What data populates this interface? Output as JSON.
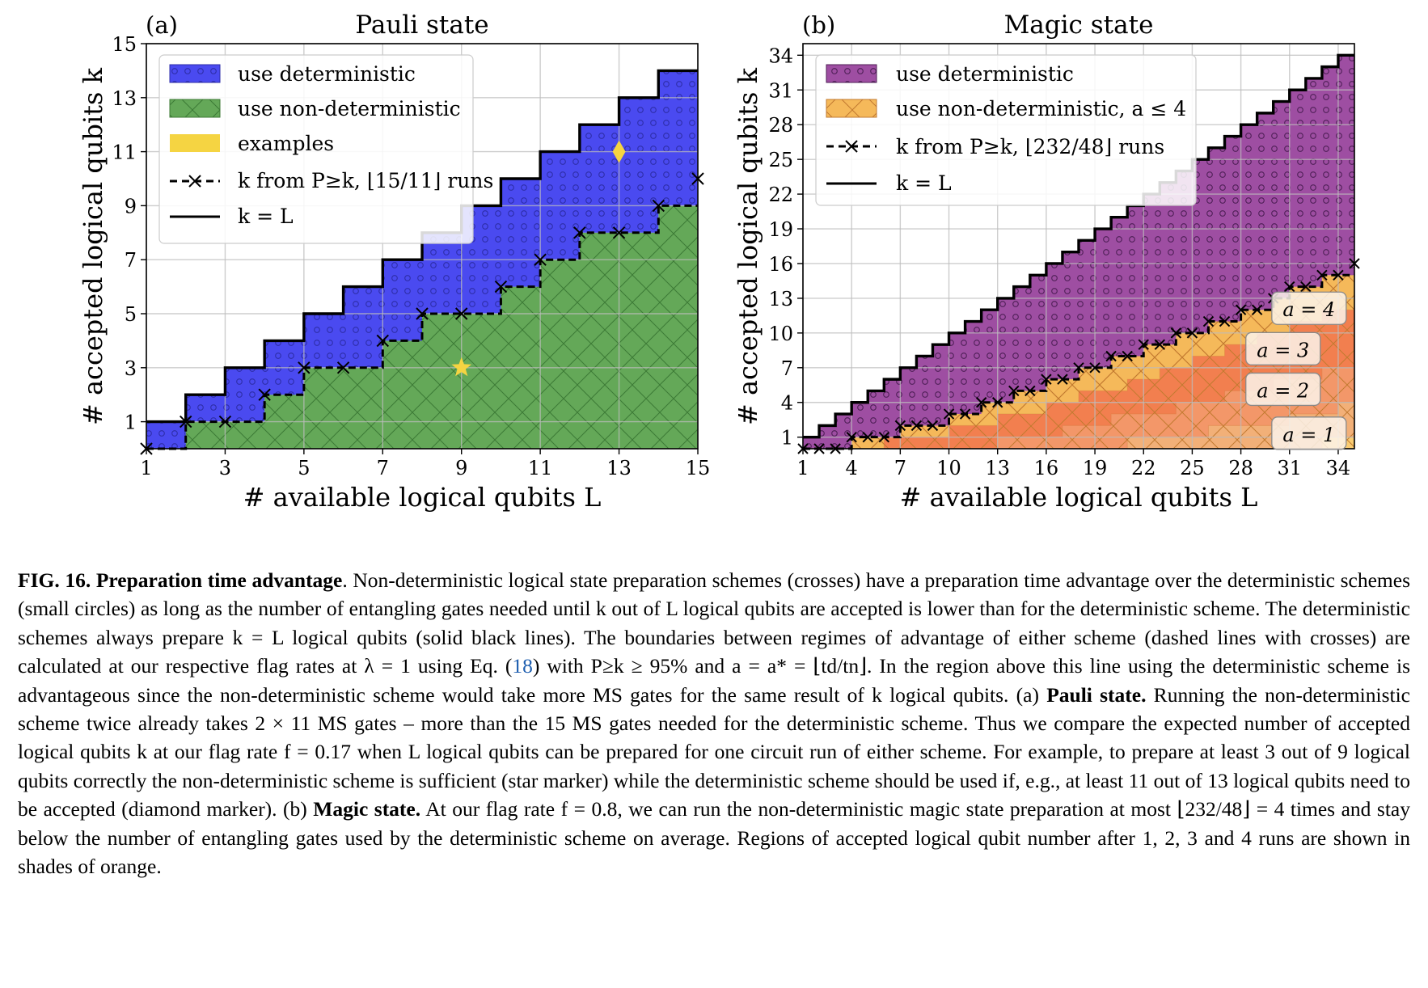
{
  "panels": [
    {
      "id": "a",
      "panel_label": "(a)",
      "title": "Pauli state",
      "xlabel": "# available logical qubits L",
      "ylabel": "# accepted logical qubits k",
      "legend": [
        {
          "label": "use deterministic",
          "kind": "det"
        },
        {
          "label": "use non-deterministic",
          "kind": "nondet"
        },
        {
          "label": "examples",
          "kind": "examples"
        },
        {
          "label": "k from P≥k, ⌊15/11⌋ runs",
          "kind": "dashed"
        },
        {
          "label": "k = L",
          "kind": "solid"
        }
      ]
    },
    {
      "id": "b",
      "panel_label": "(b)",
      "title": "Magic state",
      "xlabel": "# available logical qubits L",
      "ylabel": "# accepted logical qubits k",
      "legend": [
        {
          "label": "use deterministic",
          "kind": "det"
        },
        {
          "label": "use non-deterministic, a ≤ 4",
          "kind": "nondet"
        },
        {
          "label": "k from P≥k, ⌊232/48⌋ runs",
          "kind": "dashed"
        },
        {
          "label": "k = L",
          "kind": "solid"
        }
      ],
      "region_labels": [
        "a = 4",
        "a = 3",
        "a = 2",
        "a = 1"
      ]
    }
  ],
  "chart_data": [
    {
      "type": "area",
      "title": "Pauli state",
      "xlabel": "# available logical qubits L",
      "ylabel": "# accepted logical qubits k",
      "xlim": [
        1,
        15
      ],
      "ylim": [
        0,
        15
      ],
      "xticks": [
        1,
        3,
        5,
        7,
        9,
        11,
        13,
        15
      ],
      "yticks": [
        1,
        3,
        5,
        7,
        9,
        11,
        13,
        15
      ],
      "grid": true,
      "legend_position": "top-left",
      "series": [
        {
          "name": "k = L",
          "style": "solid",
          "x": [
            1,
            2,
            3,
            4,
            5,
            6,
            7,
            8,
            9,
            10,
            11,
            12,
            13,
            14,
            15
          ],
          "y": [
            1,
            2,
            3,
            4,
            5,
            6,
            7,
            8,
            9,
            10,
            11,
            12,
            13,
            14,
            15
          ]
        },
        {
          "name": "k from P≥k, ⌊15/11⌋ runs",
          "style": "dashed-crosses",
          "x": [
            1,
            2,
            3,
            4,
            5,
            6,
            7,
            8,
            9,
            10,
            11,
            12,
            13,
            14,
            15
          ],
          "y": [
            0,
            1,
            1,
            2,
            3,
            3,
            4,
            5,
            5,
            6,
            7,
            8,
            8,
            9,
            10
          ]
        }
      ],
      "examples": [
        {
          "marker": "star",
          "x": 9,
          "y": 3
        },
        {
          "marker": "diamond",
          "x": 13,
          "y": 11
        }
      ],
      "colors": {
        "deterministic": "#4a4af0",
        "non_deterministic": "#64a858",
        "examples": "#f5d442"
      }
    },
    {
      "type": "area",
      "title": "Magic state",
      "xlabel": "# available logical qubits L",
      "ylabel": "# accepted logical qubits k",
      "xlim": [
        1,
        35
      ],
      "ylim": [
        0,
        35
      ],
      "xticks": [
        1,
        4,
        7,
        10,
        13,
        16,
        19,
        22,
        25,
        28,
        31,
        34
      ],
      "yticks": [
        1,
        4,
        7,
        10,
        13,
        16,
        19,
        22,
        25,
        28,
        31,
        34
      ],
      "grid": true,
      "legend_position": "top-left",
      "series": [
        {
          "name": "k = L",
          "style": "solid",
          "x": [
            1,
            2,
            3,
            4,
            5,
            6,
            7,
            8,
            9,
            10,
            11,
            12,
            13,
            14,
            15,
            16,
            17,
            18,
            19,
            20,
            21,
            22,
            23,
            24,
            25,
            26,
            27,
            28,
            29,
            30,
            31,
            32,
            33,
            34,
            35
          ],
          "y": [
            1,
            2,
            3,
            4,
            5,
            6,
            7,
            8,
            9,
            10,
            11,
            12,
            13,
            14,
            15,
            16,
            17,
            18,
            19,
            20,
            21,
            22,
            23,
            24,
            25,
            26,
            27,
            28,
            29,
            30,
            31,
            32,
            33,
            34,
            35
          ]
        },
        {
          "name": "k from P≥k, ⌊232/48⌋ runs",
          "style": "dashed-crosses",
          "x": [
            1,
            2,
            3,
            4,
            5,
            6,
            7,
            8,
            9,
            10,
            11,
            12,
            13,
            14,
            15,
            16,
            17,
            18,
            19,
            20,
            21,
            22,
            23,
            24,
            25,
            26,
            27,
            28,
            29,
            30,
            31,
            32,
            33,
            34,
            35
          ],
          "y": [
            0,
            0,
            0,
            1,
            1,
            1,
            2,
            2,
            2,
            3,
            3,
            4,
            4,
            5,
            5,
            6,
            6,
            7,
            7,
            8,
            8,
            9,
            9,
            10,
            10,
            11,
            11,
            12,
            12,
            13,
            14,
            14,
            15,
            15,
            16
          ]
        }
      ],
      "runs_regions": [
        {
          "name": "a = 1",
          "y": [
            0,
            0,
            0,
            0,
            0,
            0,
            0,
            0,
            0,
            0,
            0,
            0,
            0,
            0,
            0,
            0,
            0,
            0,
            0,
            0,
            0,
            0,
            0,
            0,
            0,
            0,
            0,
            0,
            0,
            0,
            0,
            0,
            1,
            1,
            2
          ]
        },
        {
          "name": "a = 2",
          "y": [
            0,
            0,
            0,
            0,
            0,
            0,
            0,
            0,
            0,
            0,
            0,
            0,
            0,
            0,
            0,
            0,
            0,
            0,
            0,
            0,
            1,
            1,
            1,
            1,
            1,
            2,
            2,
            2,
            2,
            2,
            3,
            3,
            3,
            4,
            4
          ]
        },
        {
          "name": "a = 3",
          "y": [
            0,
            0,
            0,
            0,
            0,
            0,
            0,
            0,
            0,
            0,
            0,
            0,
            1,
            1,
            1,
            1,
            2,
            2,
            2,
            3,
            3,
            3,
            3,
            4,
            4,
            4,
            5,
            5,
            5,
            6,
            6,
            6,
            7,
            7,
            7
          ]
        },
        {
          "name": "a = 4",
          "y": [
            0,
            0,
            0,
            0,
            0,
            1,
            1,
            1,
            1,
            2,
            2,
            2,
            3,
            3,
            3,
            4,
            4,
            5,
            5,
            5,
            6,
            6,
            7,
            7,
            8,
            8,
            9,
            9,
            10,
            10,
            11,
            11,
            12,
            12,
            13
          ]
        }
      ],
      "colors": {
        "deterministic": "#9e4ea2",
        "non_deterministic": "#f5b95a",
        "runs_shades": [
          "#fbcf70",
          "#f2b27a",
          "#f39a6c",
          "#f2794e"
        ]
      }
    }
  ],
  "caption": {
    "fig_label": "FIG. 16.",
    "title_bold": "Preparation time advantage",
    "p1": ". Non-deterministic logical state preparation schemes (crosses) have a preparation time advantage over the deterministic schemes (small circles) as long as the number of entangling gates needed until k out of L logical qubits are accepted is lower than for the deterministic scheme. The deterministic schemes always prepare k = L logical qubits (solid black lines). The boundaries between regimes of advantage of either scheme (dashed lines with crosses) are calculated at our respective flag rates at λ = 1 using Eq. (",
    "eq_ref": "18",
    "p2": ") with P≥k ≥ 95% and a = a* = ⌊td/tn⌋. In the region above this line using the deterministic scheme is advantageous since the non-deterministic scheme would take more MS gates for the same result of k logical qubits. (a) ",
    "pauli_bold": "Pauli state.",
    "p3": " Running the non-deterministic scheme twice already takes 2 × 11 MS gates – more than the 15 MS gates needed for the deterministic scheme. Thus we compare the expected number of accepted logical qubits k at our flag rate f = 0.17 when L logical qubits can be prepared for one circuit run of either scheme. For example, to prepare at least 3 out of 9 logical qubits correctly the non-deterministic scheme is sufficient (star marker) while the deterministic scheme should be used if, e.g., at least 11 out of 13 logical qubits need to be accepted (diamond marker). (b) ",
    "magic_bold": "Magic state.",
    "p4": " At our flag rate f = 0.8, we can run the non-deterministic magic state preparation at most ⌊232/48⌋ = 4 times and stay below the number of entangling gates used by the deterministic scheme on average. Regions of accepted logical qubit number after 1, 2, 3 and 4 runs are shown in shades of orange."
  }
}
